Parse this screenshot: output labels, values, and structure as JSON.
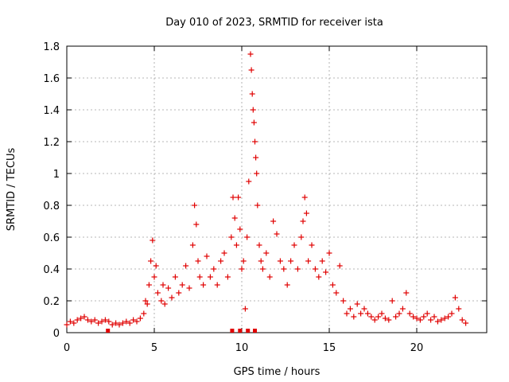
{
  "chart_data": {
    "type": "scatter",
    "title": "Day 010 of 2023, SRMTID for receiver ista",
    "xlabel": "GPS time / hours",
    "ylabel": "SRMTID / TECUs",
    "xlim": [
      0,
      24
    ],
    "ylim": [
      0,
      1.8
    ],
    "xticks": [
      0,
      5,
      10,
      15,
      20
    ],
    "yticks": [
      0,
      0.2,
      0.4,
      0.6,
      0.8,
      1,
      1.2,
      1.4,
      1.6,
      1.8
    ],
    "ytick_labels": [
      "0",
      "0.2",
      "0.4",
      "0.6",
      "0.8",
      "1",
      "1.2",
      "1.4",
      "1.6",
      "1.8"
    ],
    "grid": true,
    "marker": "+",
    "color": "#e00000",
    "series": [
      {
        "name": "SRMTID",
        "x": [
          0.0,
          0.2,
          0.4,
          0.6,
          0.8,
          1.0,
          1.2,
          1.4,
          1.6,
          1.8,
          2.0,
          2.2,
          2.4,
          2.6,
          2.8,
          3.0,
          3.2,
          3.4,
          3.6,
          3.8,
          4.0,
          4.2,
          4.4,
          4.5,
          4.6,
          4.7,
          4.8,
          4.9,
          5.0,
          5.1,
          5.2,
          5.4,
          5.5,
          5.6,
          5.8,
          6.0,
          6.2,
          6.4,
          6.6,
          6.8,
          7.0,
          7.2,
          7.3,
          7.4,
          7.5,
          7.6,
          7.8,
          8.0,
          8.2,
          8.4,
          8.6,
          8.8,
          9.0,
          9.2,
          9.4,
          9.5,
          9.6,
          9.7,
          9.8,
          9.9,
          10.0,
          10.1,
          10.2,
          10.3,
          10.4,
          10.5,
          10.55,
          10.6,
          10.65,
          10.7,
          10.75,
          10.8,
          10.85,
          10.9,
          11.0,
          11.1,
          11.2,
          11.4,
          11.6,
          11.8,
          12.0,
          12.2,
          12.4,
          12.6,
          12.8,
          13.0,
          13.2,
          13.4,
          13.5,
          13.6,
          13.7,
          13.8,
          14.0,
          14.2,
          14.4,
          14.6,
          14.8,
          15.0,
          15.2,
          15.4,
          15.6,
          15.8,
          16.0,
          16.2,
          16.4,
          16.6,
          16.8,
          17.0,
          17.2,
          17.4,
          17.6,
          17.8,
          18.0,
          18.2,
          18.4,
          18.6,
          18.8,
          19.0,
          19.2,
          19.4,
          19.6,
          19.8,
          20.0,
          20.2,
          20.4,
          20.6,
          20.8,
          21.0,
          21.2,
          21.4,
          21.6,
          21.8,
          22.0,
          22.2,
          22.4,
          22.6,
          22.8
        ],
        "y": [
          0.05,
          0.07,
          0.06,
          0.08,
          0.09,
          0.1,
          0.08,
          0.07,
          0.08,
          0.06,
          0.07,
          0.08,
          0.07,
          0.05,
          0.06,
          0.05,
          0.06,
          0.07,
          0.06,
          0.08,
          0.07,
          0.09,
          0.12,
          0.2,
          0.18,
          0.3,
          0.45,
          0.58,
          0.35,
          0.42,
          0.25,
          0.2,
          0.3,
          0.18,
          0.28,
          0.22,
          0.35,
          0.25,
          0.3,
          0.42,
          0.28,
          0.55,
          0.8,
          0.68,
          0.45,
          0.35,
          0.3,
          0.48,
          0.35,
          0.4,
          0.3,
          0.45,
          0.5,
          0.35,
          0.6,
          0.85,
          0.72,
          0.55,
          0.85,
          0.65,
          0.4,
          0.45,
          0.15,
          0.6,
          0.95,
          1.75,
          1.65,
          1.5,
          1.4,
          1.32,
          1.2,
          1.1,
          1.0,
          0.8,
          0.55,
          0.45,
          0.4,
          0.5,
          0.35,
          0.7,
          0.62,
          0.45,
          0.4,
          0.3,
          0.45,
          0.55,
          0.4,
          0.6,
          0.7,
          0.85,
          0.75,
          0.45,
          0.55,
          0.4,
          0.35,
          0.45,
          0.38,
          0.5,
          0.3,
          0.25,
          0.42,
          0.2,
          0.12,
          0.15,
          0.1,
          0.18,
          0.12,
          0.15,
          0.12,
          0.1,
          0.08,
          0.1,
          0.12,
          0.09,
          0.08,
          0.2,
          0.1,
          0.12,
          0.15,
          0.25,
          0.12,
          0.1,
          0.09,
          0.08,
          0.1,
          0.12,
          0.08,
          0.1,
          0.07,
          0.08,
          0.09,
          0.1,
          0.12,
          0.22,
          0.15,
          0.08,
          0.06
        ],
        "gap_markers_x": [
          2.35,
          9.45,
          9.9,
          10.35,
          10.75
        ]
      }
    ]
  }
}
